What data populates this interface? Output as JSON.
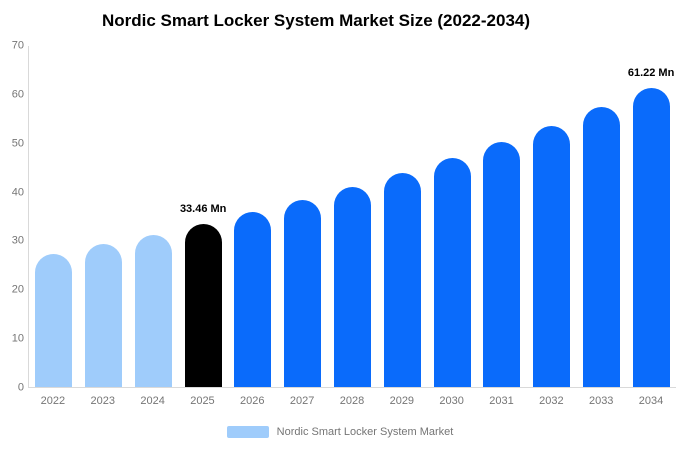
{
  "chart": {
    "title": "Nordic Smart Locker System Market Size (2022-2034)",
    "legend_label": "Nordic Smart Locker System Market"
  },
  "chart_data": {
    "type": "bar",
    "title": "Nordic Smart Locker System Market Size (2022-2034)",
    "unit": "Mn",
    "categories": [
      "2022",
      "2023",
      "2024",
      "2025",
      "2026",
      "2027",
      "2028",
      "2029",
      "2030",
      "2031",
      "2032",
      "2033",
      "2034"
    ],
    "values": [
      27.3,
      29.2,
      31.2,
      33.46,
      35.8,
      38.3,
      40.9,
      43.8,
      46.8,
      50.1,
      53.5,
      57.3,
      61.22
    ],
    "bar_colors": [
      "#9fccfb",
      "#9fccfb",
      "#9fccfb",
      "#000000",
      "#0a6bfb",
      "#0a6bfb",
      "#0a6bfb",
      "#0a6bfb",
      "#0a6bfb",
      "#0a6bfb",
      "#0a6bfb",
      "#0a6bfb",
      "#0a6bfb"
    ],
    "data_labels": [
      {
        "category": "2025",
        "text": "33.46 Mn"
      },
      {
        "category": "2034",
        "text": "61.22 Mn"
      }
    ],
    "xlabel": "",
    "ylabel": "",
    "ylim": [
      0,
      70
    ],
    "yticks": [
      0,
      10,
      20,
      30,
      40,
      50,
      60,
      70
    ],
    "grid": false,
    "legend": [
      "Nordic Smart Locker System Market"
    ],
    "legend_position": "bottom",
    "colors": {
      "history_bars": "#9fccfb",
      "highlight_bar": "#000000",
      "forecast_bars": "#0a6bfb",
      "axis_line": "#d9d9d9",
      "tick_text": "#757575",
      "data_label_text": "#000000",
      "legend_swatch": "#9fccfb"
    }
  }
}
